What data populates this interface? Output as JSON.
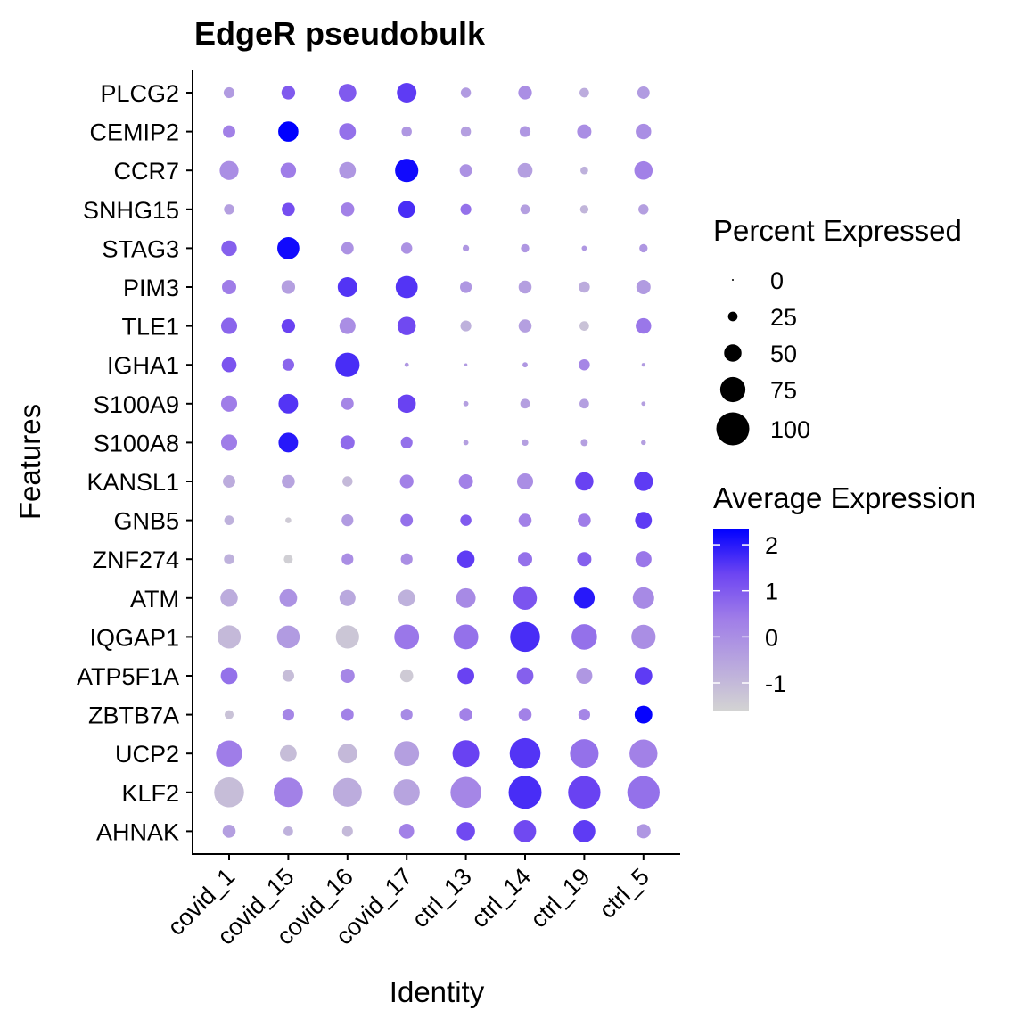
{
  "chart_data": {
    "type": "dotplot",
    "title": "EdgeR pseudobulk",
    "xlabel": "Identity",
    "ylabel": "Features",
    "categories": [
      "covid_1",
      "covid_15",
      "covid_16",
      "covid_17",
      "ctrl_13",
      "ctrl_14",
      "ctrl_19",
      "ctrl_5"
    ],
    "features": [
      "PLCG2",
      "CEMIP2",
      "CCR7",
      "SNHG15",
      "STAG3",
      "PIM3",
      "TLE1",
      "IGHA1",
      "S100A9",
      "S100A8",
      "KANSL1",
      "GNB5",
      "ZNF274",
      "ATM",
      "IQGAP1",
      "ATP5F1A",
      "ZBTB7A",
      "UCP2",
      "KLF2",
      "AHNAK"
    ],
    "percent_expressed": [
      [
        29,
        38,
        51,
        57,
        27,
        38,
        25,
        34
      ],
      [
        34,
        59,
        48,
        27,
        27,
        29,
        40,
        44
      ],
      [
        55,
        44,
        48,
        69,
        34,
        42,
        19,
        53
      ],
      [
        27,
        36,
        38,
        48,
        29,
        25,
        21,
        27
      ],
      [
        44,
        65,
        34,
        30,
        15,
        21,
        11,
        21
      ],
      [
        40,
        38,
        57,
        65,
        32,
        36,
        30,
        40
      ],
      [
        46,
        38,
        46,
        53,
        29,
        36,
        25,
        44
      ],
      [
        42,
        32,
        72,
        8,
        4,
        11,
        30,
        6
      ],
      [
        46,
        57,
        34,
        53,
        11,
        25,
        25,
        8
      ],
      [
        46,
        57,
        40,
        32,
        11,
        15,
        17,
        10
      ],
      [
        34,
        36,
        27,
        38,
        40,
        46,
        53,
        55
      ],
      [
        25,
        13,
        32,
        34,
        30,
        36,
        36,
        48
      ],
      [
        27,
        23,
        32,
        32,
        50,
        40,
        40,
        46
      ],
      [
        50,
        51,
        46,
        48,
        57,
        70,
        61,
        63
      ],
      [
        69,
        67,
        69,
        74,
        74,
        90,
        76,
        72
      ],
      [
        48,
        32,
        40,
        36,
        48,
        48,
        46,
        51
      ],
      [
        23,
        32,
        34,
        32,
        36,
        36,
        32,
        51
      ],
      [
        78,
        48,
        57,
        74,
        80,
        93,
        86,
        84
      ],
      [
        90,
        88,
        86,
        78,
        93,
        100,
        98,
        98
      ],
      [
        36,
        25,
        29,
        42,
        53,
        65,
        65,
        40
      ]
    ],
    "average_expression": [
      [
        -0.3,
        1.0,
        1.0,
        1.5,
        -0.3,
        0.0,
        -0.7,
        -0.3
      ],
      [
        0.3,
        2.35,
        0.6,
        -0.2,
        -0.4,
        -0.2,
        0.0,
        0.0
      ],
      [
        0.0,
        0.4,
        -0.2,
        2.2,
        -0.1,
        -0.4,
        -0.8,
        0.3
      ],
      [
        -0.4,
        1.2,
        0.3,
        1.7,
        0.6,
        -0.4,
        -0.9,
        -0.4
      ],
      [
        0.9,
        2.2,
        -0.1,
        -0.1,
        -0.2,
        -0.2,
        -0.2,
        -0.2
      ],
      [
        0.4,
        -0.4,
        1.6,
        1.6,
        -0.2,
        -0.4,
        -0.7,
        -0.3
      ],
      [
        0.8,
        1.4,
        0.0,
        1.3,
        -0.8,
        -0.4,
        -1.2,
        0.5
      ],
      [
        1.1,
        0.8,
        1.7,
        -0.2,
        -0.3,
        -0.2,
        0.2,
        -0.3
      ],
      [
        0.4,
        1.6,
        0.2,
        1.4,
        -0.4,
        -0.4,
        -0.4,
        -0.4
      ],
      [
        0.4,
        2.0,
        0.7,
        0.6,
        -0.4,
        -0.4,
        -0.4,
        -0.4
      ],
      [
        -0.7,
        -0.5,
        -1.0,
        0.3,
        0.3,
        0.0,
        1.4,
        1.5
      ],
      [
        -0.8,
        -1.4,
        -0.3,
        0.6,
        1.0,
        0.3,
        0.4,
        1.5
      ],
      [
        -0.8,
        -1.5,
        0.0,
        0.0,
        1.5,
        0.6,
        0.9,
        0.5
      ],
      [
        -0.7,
        -0.1,
        -0.6,
        -0.8,
        0.1,
        1.1,
        2.0,
        0.1
      ],
      [
        -1.0,
        -0.3,
        -1.3,
        0.5,
        0.6,
        1.7,
        0.6,
        0.0
      ],
      [
        0.6,
        -1.1,
        0.2,
        -1.4,
        1.4,
        0.9,
        -0.2,
        1.5
      ],
      [
        -1.2,
        0.2,
        0.3,
        0.1,
        0.3,
        0.3,
        0.2,
        2.3
      ],
      [
        0.4,
        -1.1,
        -1.0,
        -0.4,
        1.4,
        1.6,
        0.6,
        0.3
      ],
      [
        -1.1,
        0.3,
        -0.7,
        -0.5,
        0.2,
        1.7,
        1.4,
        0.6
      ],
      [
        -0.4,
        -0.8,
        -1.0,
        0.3,
        1.3,
        1.3,
        1.5,
        -0.2
      ]
    ],
    "color_range": [
      -1.6,
      2.35
    ],
    "color_low": "#d3d3d3",
    "color_high": "#0000ff",
    "size_legend": {
      "title": "Percent Expressed",
      "breaks": [
        0,
        25,
        50,
        75,
        100
      ],
      "labels": [
        "0",
        "25",
        "50",
        "75",
        "100"
      ]
    },
    "color_legend": {
      "title": "Average Expression",
      "breaks": [
        2,
        1,
        0,
        -1
      ],
      "labels": [
        "2",
        "1",
        "0",
        "-1"
      ]
    },
    "legend_position": "right",
    "grid": false
  }
}
